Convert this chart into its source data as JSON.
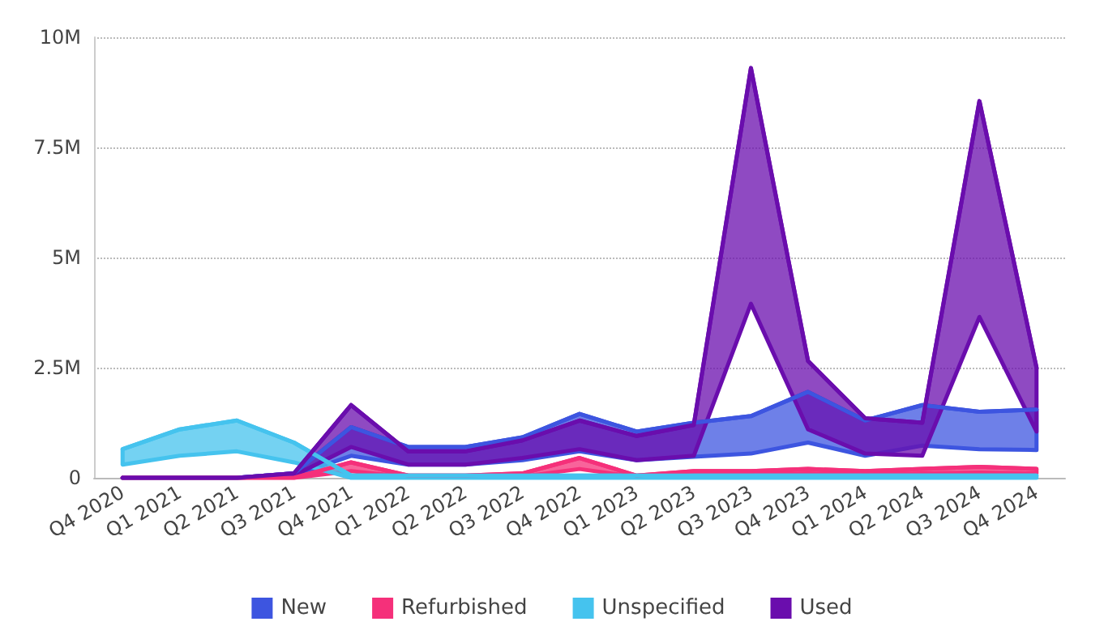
{
  "chart_data": {
    "type": "line",
    "marker": "none",
    "categories": [
      "Q4 2020",
      "Q1 2021",
      "Q2 2021",
      "Q3 2021",
      "Q4 2021",
      "Q1 2022",
      "Q2 2022",
      "Q3 2022",
      "Q4 2022",
      "Q1 2023",
      "Q2 2023",
      "Q3 2023",
      "Q4 2023",
      "Q1 2024",
      "Q2 2024",
      "Q3 2024",
      "Q4 2024"
    ],
    "ylim": [
      0,
      10000000
    ],
    "yticks": [
      {
        "value": 0,
        "label": "0"
      },
      {
        "value": 2500000,
        "label": "2.5M"
      },
      {
        "value": 5000000,
        "label": "5M"
      },
      {
        "value": 7500000,
        "label": "7.5M"
      },
      {
        "value": 10000000,
        "label": "10M"
      }
    ],
    "grid": "y",
    "legend": "bottom",
    "series": [
      {
        "name": "New",
        "color": "#3d55e0",
        "values": [
          0,
          0,
          0,
          100000,
          1150000,
          700000,
          700000,
          920000,
          1450000,
          1050000,
          1250000,
          1400000,
          1950000,
          1300000,
          1650000,
          1500000,
          1550000
        ],
        "upper": [
          0,
          0,
          0,
          100000,
          1150000,
          700000,
          700000,
          920000,
          1450000,
          1050000,
          1250000,
          1400000,
          1950000,
          1300000,
          1650000,
          1500000,
          1550000
        ],
        "lower": [
          0,
          0,
          0,
          50000,
          500000,
          300000,
          300000,
          400000,
          600000,
          400000,
          480000,
          550000,
          800000,
          500000,
          730000,
          650000,
          630000
        ]
      },
      {
        "name": "Refurbished",
        "color": "#f5307a",
        "values": [
          0,
          0,
          0,
          0,
          350000,
          50000,
          50000,
          100000,
          450000,
          50000,
          150000,
          150000,
          200000,
          150000,
          200000,
          250000,
          200000
        ],
        "upper": [
          0,
          0,
          0,
          0,
          350000,
          50000,
          50000,
          100000,
          450000,
          50000,
          150000,
          150000,
          200000,
          150000,
          200000,
          250000,
          200000
        ],
        "lower": [
          0,
          0,
          0,
          0,
          150000,
          20000,
          20000,
          30000,
          200000,
          20000,
          80000,
          80000,
          100000,
          80000,
          100000,
          120000,
          100000
        ]
      },
      {
        "name": "Unspecified",
        "color": "#45c3ee",
        "values": [
          650000,
          1100000,
          1300000,
          800000,
          50000,
          50000,
          50000,
          50000,
          50000,
          50000,
          50000,
          50000,
          50000,
          50000,
          50000,
          50000,
          50000
        ],
        "upper": [
          650000,
          1100000,
          1300000,
          800000,
          50000,
          50000,
          50000,
          50000,
          50000,
          50000,
          50000,
          50000,
          50000,
          50000,
          50000,
          50000,
          50000
        ],
        "lower": [
          300000,
          500000,
          600000,
          350000,
          0,
          0,
          0,
          0,
          0,
          0,
          0,
          0,
          0,
          0,
          0,
          0,
          0
        ]
      },
      {
        "name": "Used",
        "color": "#6a0dad",
        "values": [
          0,
          0,
          0,
          100000,
          1650000,
          600000,
          600000,
          850000,
          1300000,
          950000,
          1200000,
          9300000,
          2650000,
          1350000,
          1250000,
          8550000,
          2500000
        ],
        "upper": [
          0,
          0,
          0,
          100000,
          1650000,
          600000,
          600000,
          850000,
          1300000,
          950000,
          1200000,
          9300000,
          2650000,
          1350000,
          1250000,
          8550000,
          2500000
        ],
        "lower": [
          0,
          0,
          0,
          50000,
          700000,
          300000,
          300000,
          450000,
          650000,
          400000,
          500000,
          3950000,
          1100000,
          550000,
          500000,
          3650000,
          1050000
        ]
      }
    ]
  }
}
